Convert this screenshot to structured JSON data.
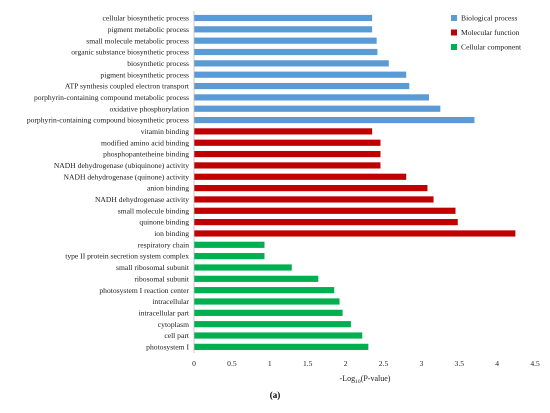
{
  "chart_data": {
    "type": "bar",
    "orientation": "horizontal",
    "xlabel": "-Log10(P-value)",
    "xlim": [
      0,
      4.5
    ],
    "xticks": [
      "0",
      "0.5",
      "1",
      "1.5",
      "2",
      "2.5",
      "3",
      "3.5",
      "4",
      "4.5"
    ],
    "grid": false,
    "legend": "top-right",
    "caption": "(a)",
    "series": [
      {
        "name": "Biological process",
        "color": "#5B9BD5",
        "categories": [
          "cellular biosynthetic process",
          "pigment metabolic process",
          "small molecule metabolic process",
          "organic substance biosynthetic process",
          "biosynthetic process",
          "pigment biosynthetic process",
          "ATP synthesis coupled electron transport",
          "porphyrin-containing compound metabolic process",
          "oxidative phosphorylation",
          "porphyrin-containing compound biosynthetic process"
        ],
        "values": [
          2.35,
          2.35,
          2.41,
          2.42,
          2.57,
          2.8,
          2.84,
          3.1,
          3.25,
          3.7
        ]
      },
      {
        "name": "Molecular function",
        "color": "#C00000",
        "categories": [
          "vitamin binding",
          "modified amino acid binding",
          "phosphopantetheine binding",
          "NADH dehydrogenase (ubiquinone) activity",
          "NADH dehydrogenase (quinone) activity",
          "anion binding",
          "NADH dehydrogenase activity",
          "small molecule binding",
          "quinone binding",
          "ion binding"
        ],
        "values": [
          2.35,
          2.46,
          2.46,
          2.46,
          2.8,
          3.08,
          3.16,
          3.45,
          3.48,
          4.24
        ]
      },
      {
        "name": "Cellular component",
        "color": "#00B050",
        "categories": [
          "respiratory chain",
          "type II protein secretion system complex",
          "small ribosomal subunit",
          "ribosomal subunit",
          "photosystem I reaction center",
          "intracellular",
          "intracellular part",
          "cytoplasm",
          "cell part",
          "photosystem I"
        ],
        "values": [
          0.93,
          0.93,
          1.29,
          1.64,
          1.85,
          1.92,
          1.96,
          2.07,
          2.22,
          2.3
        ]
      }
    ]
  }
}
